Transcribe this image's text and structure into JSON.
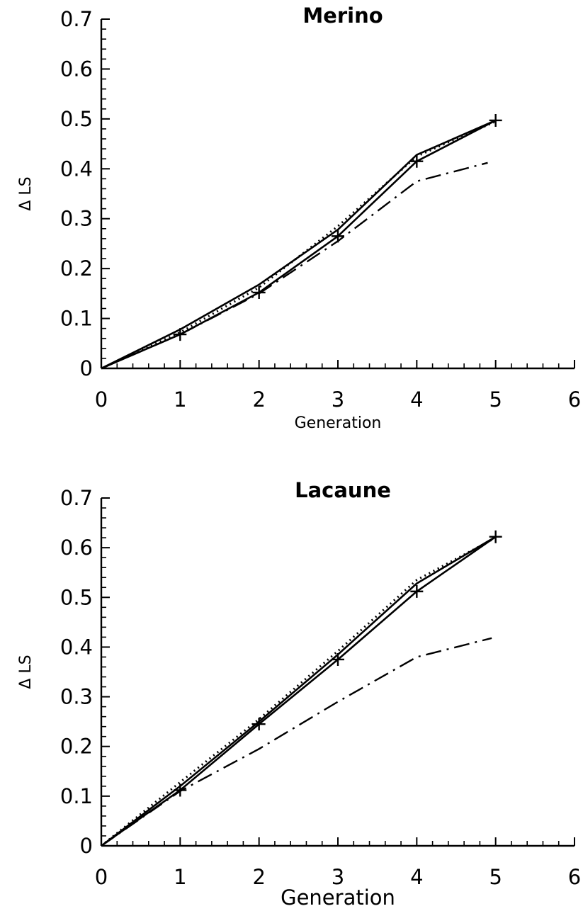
{
  "chart_data": [
    {
      "type": "line",
      "title": "Merino",
      "xlabel": "Generation",
      "ylabel": "Δ LS",
      "xlim": [
        0,
        6
      ],
      "ylim": [
        0,
        0.7
      ],
      "x_ticks": [
        "0",
        "1",
        "2",
        "3",
        "4",
        "5",
        "6"
      ],
      "y_ticks": [
        "0",
        "0.1",
        "0.2",
        "0.3",
        "0.4",
        "0.5",
        "0.6",
        "0.7"
      ],
      "grid": false,
      "series": [
        {
          "style": "solid-plus",
          "x": [
            0,
            1,
            2,
            3,
            4,
            5
          ],
          "values": [
            0,
            0.068,
            0.152,
            0.265,
            0.415,
            0.497
          ]
        },
        {
          "style": "solid",
          "x": [
            0,
            1,
            2,
            3,
            4,
            5
          ],
          "values": [
            0,
            0.078,
            0.168,
            0.278,
            0.428,
            0.497
          ]
        },
        {
          "style": "dotted",
          "x": [
            0,
            1,
            2,
            3,
            4,
            5
          ],
          "values": [
            0,
            0.072,
            0.162,
            0.285,
            0.425,
            0.495
          ]
        },
        {
          "style": "dash-dot",
          "x": [
            0,
            1,
            2,
            3,
            4,
            4.9
          ],
          "values": [
            0,
            0.068,
            0.15,
            0.255,
            0.375,
            0.412
          ]
        }
      ]
    },
    {
      "type": "line",
      "title": "Lacaune",
      "xlabel": "Generation",
      "ylabel": "Δ LS",
      "xlim": [
        0,
        6
      ],
      "ylim": [
        0,
        0.7
      ],
      "x_ticks": [
        "0",
        "1",
        "2",
        "3",
        "4",
        "5",
        "6"
      ],
      "y_ticks": [
        "0",
        "0.1",
        "0.2",
        "0.3",
        "0.4",
        "0.5",
        "0.6",
        "0.7"
      ],
      "grid": false,
      "series": [
        {
          "style": "solid-plus",
          "x": [
            0,
            1,
            2,
            3,
            4,
            5
          ],
          "values": [
            0,
            0.112,
            0.245,
            0.375,
            0.512,
            0.622
          ]
        },
        {
          "style": "solid",
          "x": [
            0,
            1,
            2,
            3,
            4,
            5
          ],
          "values": [
            0,
            0.12,
            0.25,
            0.385,
            0.528,
            0.622
          ]
        },
        {
          "style": "dotted",
          "x": [
            0,
            1,
            2,
            3,
            4,
            5
          ],
          "values": [
            0,
            0.128,
            0.255,
            0.392,
            0.535,
            0.62
          ]
        },
        {
          "style": "dash-dot",
          "x": [
            0,
            1,
            2,
            3,
            4,
            4.95
          ],
          "values": [
            0,
            0.11,
            0.195,
            0.29,
            0.38,
            0.418
          ]
        }
      ]
    }
  ]
}
